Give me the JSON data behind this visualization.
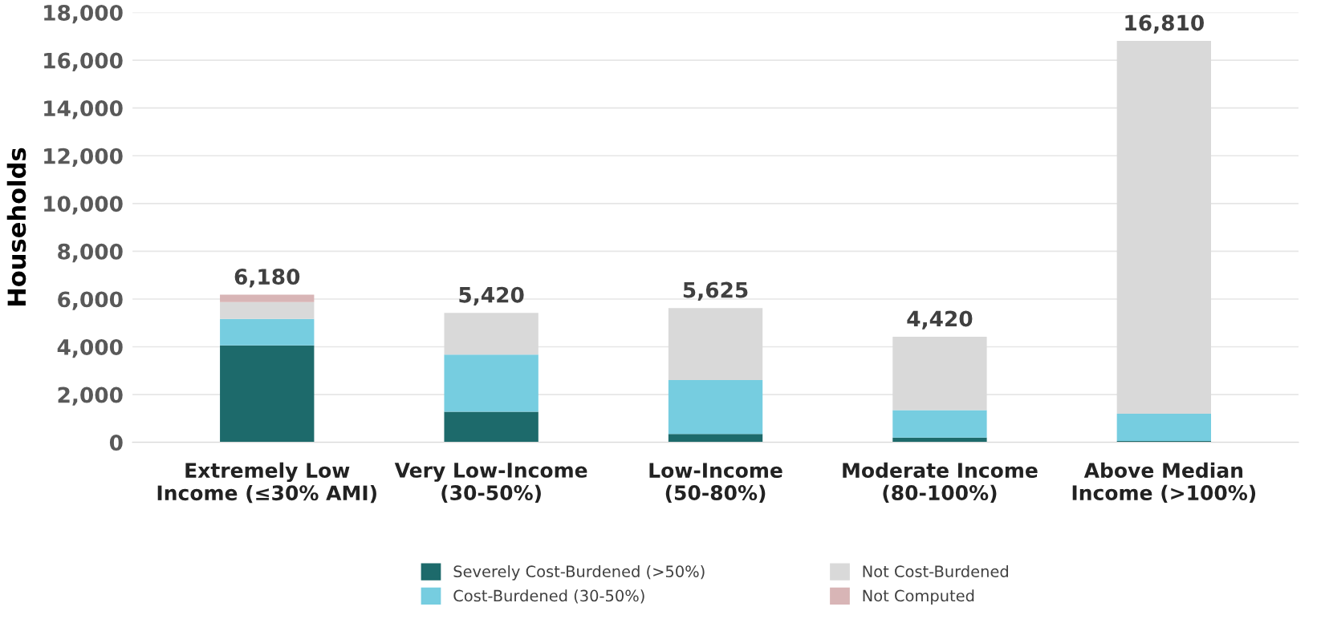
{
  "chart_data": {
    "type": "bar",
    "stacked": true,
    "ylabel": "Households",
    "categories": [
      "Extremely Low\nIncome (≤30% AMI)",
      "Very Low-Income\n(30-50%)",
      "Low-Income\n(50-80%)",
      "Moderate Income\n(80-100%)",
      "Above Median\nIncome (>100%)"
    ],
    "series": [
      {
        "name": "Severely Cost-Burdened (>50%)",
        "color": "#1d6a6b",
        "values": [
          4060,
          1280,
          350,
          200,
          60
        ]
      },
      {
        "name": "Cost-Burdened (30-50%)",
        "color": "#76cde0",
        "values": [
          1110,
          2390,
          2260,
          1150,
          1140
        ]
      },
      {
        "name": "Not Cost-Burdened",
        "color": "#d9d9d9",
        "values": [
          700,
          1750,
          3015,
          3070,
          15610
        ]
      },
      {
        "name": "Not Computed",
        "color": "#d8b5b6",
        "values": [
          310,
          0,
          0,
          0,
          0
        ]
      }
    ],
    "totals": [
      "6,180",
      "5,420",
      "5,625",
      "4,420",
      "16,810"
    ],
    "ylim": [
      0,
      18000
    ],
    "yticks": [
      {
        "value": 0,
        "label": "0"
      },
      {
        "value": 2000,
        "label": "2,000"
      },
      {
        "value": 4000,
        "label": "4,000"
      },
      {
        "value": 6000,
        "label": "6,000"
      },
      {
        "value": 8000,
        "label": "8,000"
      },
      {
        "value": 10000,
        "label": "10,000"
      },
      {
        "value": 12000,
        "label": "12,000"
      },
      {
        "value": 14000,
        "label": "14,000"
      },
      {
        "value": 16000,
        "label": "16,000"
      },
      {
        "value": 18000,
        "label": "18,000"
      }
    ],
    "grid": "y",
    "legend": "bottom"
  }
}
